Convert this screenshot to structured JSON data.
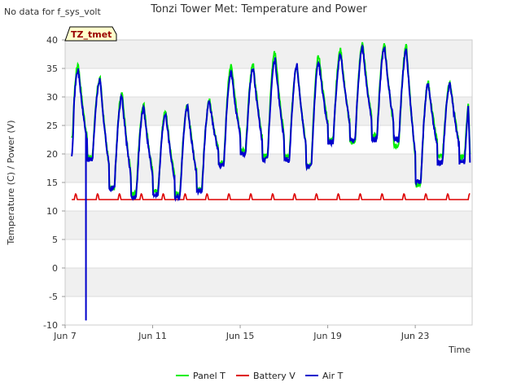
{
  "header": {
    "no_data_note": "No data for f_sys_volt",
    "badge": "TZ_tmet"
  },
  "colors": {
    "panel_t": "#00ee00",
    "battery_v": "#dd0000",
    "air_t": "#0000cc",
    "band": "#f0f0f0",
    "badge_bg": "#ffffcc",
    "badge_text": "#990000"
  },
  "chart_data": {
    "type": "line",
    "title": "Tonzi Tower Met: Temperature and Power",
    "xlabel": "Time",
    "ylabel": "Temperature (C) / Power (V)",
    "ylim": [
      -10,
      40
    ],
    "xlim_days": [
      7,
      25.6
    ],
    "yticks": [
      -10,
      -5,
      0,
      5,
      10,
      15,
      20,
      25,
      30,
      35,
      40
    ],
    "xticks": [
      {
        "day": 7,
        "label": "Jun 7"
      },
      {
        "day": 11,
        "label": "Jun 11"
      },
      {
        "day": 15,
        "label": "Jun 15"
      },
      {
        "day": 19,
        "label": "Jun 19"
      },
      {
        "day": 23,
        "label": "Jun 23"
      }
    ],
    "legend": [
      "Panel T",
      "Battery V",
      "Air T"
    ],
    "series_meta": [
      {
        "name": "Panel T",
        "start_day": 7.3,
        "start_value": 22.5,
        "end_day": 25.5,
        "end_value": 20.0,
        "daily_min": [
          17.5,
          19.5,
          14.0,
          13.0,
          13.5,
          13.0,
          14.0,
          18.5,
          20.5,
          19.5,
          19.5,
          18.0,
          22.5,
          22.0,
          23.0,
          21.5,
          14.5,
          19.5
        ],
        "daily_max": [
          35.8,
          33.3,
          30.8,
          28.6,
          27.6,
          28.6,
          29.3,
          35.6,
          35.8,
          37.9,
          35.8,
          37.2,
          38.3,
          39.4,
          39.4,
          38.9,
          32.5
        ]
      },
      {
        "name": "Air T",
        "start_day": 7.3,
        "start_value": 20.0,
        "end_day": 25.5,
        "end_value": 18.5,
        "dropout": {
          "day": 7.95,
          "value": -9.2
        },
        "daily_min": [
          17.5,
          19.0,
          14.0,
          12.5,
          13.0,
          12.5,
          13.5,
          18.0,
          20.0,
          19.0,
          19.0,
          17.8,
          22.0,
          22.5,
          22.5,
          22.5,
          15.0,
          18.5
        ],
        "daily_max": [
          34.8,
          33.0,
          30.0,
          28.0,
          27.2,
          28.2,
          29.2,
          34.3,
          35.0,
          36.5,
          35.5,
          36.0,
          37.5,
          38.8,
          38.5,
          38.2,
          32.3
        ]
      },
      {
        "name": "Battery V",
        "start_day": 7.3,
        "end_day": 25.5,
        "baseline": 12.0,
        "daily_peak": 13.0
      }
    ]
  },
  "legend_items": [
    {
      "label": "Panel T"
    },
    {
      "label": "Battery V"
    },
    {
      "label": "Air T"
    }
  ]
}
